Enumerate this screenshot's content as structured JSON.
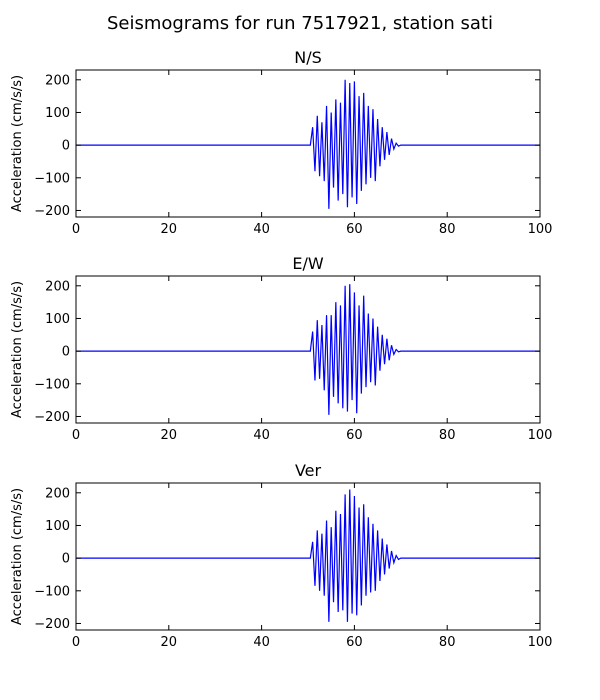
{
  "figure": {
    "title": "Seismograms for run 7517921, station sati",
    "line_color": "#0000ff"
  },
  "chart_data": [
    {
      "type": "line",
      "title": "N/S",
      "xlabel": "",
      "ylabel": "Acceleration (cm/s/s)",
      "xlim": [
        0,
        100
      ],
      "ylim": [
        -220,
        230
      ],
      "xticks": [
        0,
        20,
        40,
        60,
        80,
        100
      ],
      "yticks": [
        -200,
        -100,
        0,
        100,
        200
      ],
      "grid": false,
      "x": [
        0,
        50.5,
        51.0,
        51.5,
        52.0,
        52.5,
        53.0,
        53.5,
        54.0,
        54.5,
        55.0,
        55.5,
        56.0,
        56.5,
        57.0,
        57.5,
        58.0,
        58.5,
        59.0,
        59.5,
        60.0,
        60.5,
        61.0,
        61.5,
        62.0,
        62.5,
        63.0,
        63.5,
        64.0,
        64.5,
        65.0,
        65.5,
        66.0,
        66.5,
        67.0,
        67.5,
        68.0,
        68.5,
        69.0,
        69.5,
        70.0,
        100
      ],
      "y": [
        0,
        0,
        55,
        -80,
        90,
        -95,
        70,
        -110,
        120,
        -195,
        100,
        -130,
        140,
        -170,
        130,
        -150,
        200,
        -190,
        190,
        -160,
        195,
        -180,
        150,
        -140,
        160,
        -120,
        120,
        -100,
        110,
        -110,
        80,
        -65,
        55,
        -45,
        40,
        -30,
        20,
        -12,
        6,
        -3,
        0,
        0
      ]
    },
    {
      "type": "line",
      "title": "E/W",
      "xlabel": "",
      "ylabel": "Acceleration (cm/s/s)",
      "xlim": [
        0,
        100
      ],
      "ylim": [
        -220,
        230
      ],
      "xticks": [
        0,
        20,
        40,
        60,
        80,
        100
      ],
      "yticks": [
        -200,
        -100,
        0,
        100,
        200
      ],
      "grid": false,
      "x": [
        0,
        50.5,
        51.0,
        51.5,
        52.0,
        52.5,
        53.0,
        53.5,
        54.0,
        54.5,
        55.0,
        55.5,
        56.0,
        56.5,
        57.0,
        57.5,
        58.0,
        58.5,
        59.0,
        59.5,
        60.0,
        60.5,
        61.0,
        61.5,
        62.0,
        62.5,
        63.0,
        63.5,
        64.0,
        64.5,
        65.0,
        65.5,
        66.0,
        66.5,
        67.0,
        67.5,
        68.0,
        68.5,
        69.0,
        69.5,
        70.0,
        100
      ],
      "y": [
        0,
        0,
        60,
        -90,
        95,
        -85,
        80,
        -120,
        110,
        -195,
        110,
        -140,
        150,
        -160,
        140,
        -175,
        200,
        -185,
        205,
        -150,
        180,
        -190,
        140,
        -130,
        170,
        -110,
        115,
        -95,
        100,
        -105,
        75,
        -60,
        50,
        -40,
        38,
        -28,
        18,
        -10,
        5,
        -2,
        0,
        0
      ]
    },
    {
      "type": "line",
      "title": "Ver",
      "xlabel": "",
      "ylabel": "Acceleration (cm/s/s)",
      "xlim": [
        0,
        100
      ],
      "ylim": [
        -220,
        230
      ],
      "xticks": [
        0,
        20,
        40,
        60,
        80,
        100
      ],
      "yticks": [
        -200,
        -100,
        0,
        100,
        200
      ],
      "grid": false,
      "x": [
        0,
        50.5,
        51.0,
        51.5,
        52.0,
        52.5,
        53.0,
        53.5,
        54.0,
        54.5,
        55.0,
        55.5,
        56.0,
        56.5,
        57.0,
        57.5,
        58.0,
        58.5,
        59.0,
        59.5,
        60.0,
        60.5,
        61.0,
        61.5,
        62.0,
        62.5,
        63.0,
        63.5,
        64.0,
        64.5,
        65.0,
        65.5,
        66.0,
        66.5,
        67.0,
        67.5,
        68.0,
        68.5,
        69.0,
        69.5,
        70.0,
        100
      ],
      "y": [
        0,
        0,
        50,
        -85,
        85,
        -100,
        75,
        -115,
        115,
        -195,
        95,
        -135,
        145,
        -165,
        135,
        -160,
        195,
        -195,
        210,
        -170,
        190,
        -175,
        155,
        -145,
        165,
        -115,
        125,
        -105,
        105,
        -100,
        85,
        -70,
        60,
        -50,
        42,
        -32,
        22,
        -14,
        8,
        -4,
        0,
        0
      ]
    }
  ]
}
